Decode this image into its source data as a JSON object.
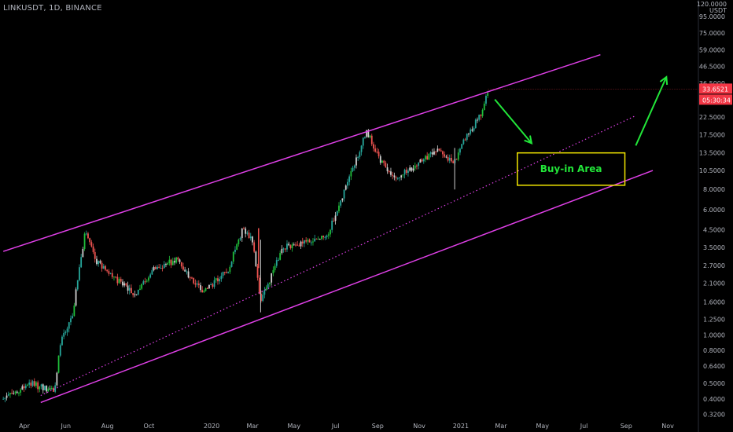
{
  "header": {
    "symbol_title": "LINKUSDT, 1D, BINANCE",
    "scale_top": "120.0000",
    "currency": "USDT"
  },
  "price_tags": {
    "last_price": "33.6521",
    "countdown": "05:30:34"
  },
  "annotations": {
    "buy_area_label": "Buy-in Area"
  },
  "colors": {
    "background": "#000000",
    "bull_candle": "#26a69a",
    "bull_candle_bright": "#1fbf3a",
    "bear_candle": "#ef5350",
    "neutral_candle": "#cfcfcf",
    "channel": "#e040e8",
    "arrow": "#22e639",
    "buy_box": "#f2e600",
    "tag": "#f23645"
  },
  "chart_data": {
    "type": "candlestick",
    "y_scale": "log",
    "y_ticks": [
      "95.0000",
      "75.0000",
      "59.0000",
      "46.5000",
      "36.5000",
      "22.5000",
      "17.5000",
      "13.5000",
      "10.5000",
      "8.0000",
      "6.0000",
      "4.5000",
      "3.5000",
      "2.7000",
      "2.1000",
      "1.6000",
      "1.2500",
      "1.0000",
      "0.8000",
      "0.6400",
      "0.5000",
      "0.4000",
      "0.3200"
    ],
    "x_ticks": [
      "Apr",
      "Jun",
      "Aug",
      "Oct",
      "2020",
      "Mar",
      "May",
      "Jul",
      "Sep",
      "Nov",
      "2021",
      "Mar",
      "May",
      "Jul",
      "Sep",
      "Nov"
    ],
    "price_path": [
      {
        "date": "2019-03-01",
        "price": 0.4
      },
      {
        "date": "2019-04-10",
        "price": 0.5
      },
      {
        "date": "2019-05-15",
        "price": 0.44
      },
      {
        "date": "2019-05-25",
        "price": 0.95
      },
      {
        "date": "2019-06-10",
        "price": 1.3
      },
      {
        "date": "2019-06-29",
        "price": 4.3
      },
      {
        "date": "2019-07-15",
        "price": 2.9
      },
      {
        "date": "2019-08-10",
        "price": 2.3
      },
      {
        "date": "2019-09-10",
        "price": 1.75
      },
      {
        "date": "2019-10-10",
        "price": 2.6
      },
      {
        "date": "2019-11-10",
        "price": 2.9
      },
      {
        "date": "2019-12-20",
        "price": 1.85
      },
      {
        "date": "2020-01-25",
        "price": 2.5
      },
      {
        "date": "2020-02-15",
        "price": 4.5
      },
      {
        "date": "2020-03-01",
        "price": 3.9
      },
      {
        "date": "2020-03-13",
        "price": 1.6
      },
      {
        "date": "2020-04-15",
        "price": 3.5
      },
      {
        "date": "2020-05-15",
        "price": 3.7
      },
      {
        "date": "2020-06-20",
        "price": 4.3
      },
      {
        "date": "2020-07-20",
        "price": 9.0
      },
      {
        "date": "2020-08-16",
        "price": 18.5
      },
      {
        "date": "2020-09-05",
        "price": 12.0
      },
      {
        "date": "2020-09-25",
        "price": 9.5
      },
      {
        "date": "2020-10-25",
        "price": 11.0
      },
      {
        "date": "2020-11-25",
        "price": 14.0
      },
      {
        "date": "2020-12-22",
        "price": 11.5
      },
      {
        "date": "2021-01-05",
        "price": 16.0
      },
      {
        "date": "2021-02-01",
        "price": 24.0
      },
      {
        "date": "2021-02-10",
        "price": 33.65
      }
    ],
    "drawings": {
      "upper_channel": [
        {
          "date": "2019-03-01",
          "price": 3.3
        },
        {
          "date": "2021-07-25",
          "price": 55.0
        }
      ],
      "mid_dotted": [
        {
          "date": "2019-04-25",
          "price": 0.42
        },
        {
          "date": "2021-09-15",
          "price": 23.0
        }
      ],
      "lower_channel": [
        {
          "date": "2019-04-25",
          "price": 0.38
        },
        {
          "date": "2021-10-10",
          "price": 10.5
        }
      ],
      "buy_in_area": {
        "date_from": "2021-03-25",
        "date_to": "2021-08-30",
        "price_from": 8.5,
        "price_to": 13.5
      },
      "down_arrow": [
        {
          "date": "2021-02-20",
          "price": 29.0
        },
        {
          "date": "2021-04-15",
          "price": 15.5
        }
      ],
      "up_arrow": [
        {
          "date": "2021-09-15",
          "price": 15.0
        },
        {
          "date": "2021-10-30",
          "price": 40.0
        }
      ]
    }
  }
}
